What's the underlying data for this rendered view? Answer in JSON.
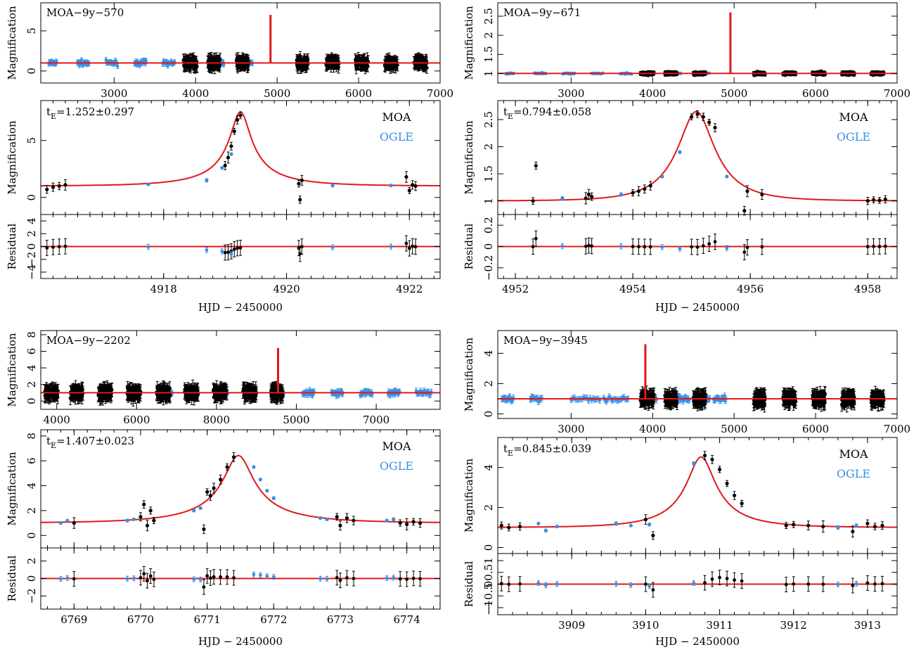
{
  "colors": {
    "moa": "#000000",
    "ogle": "#3b8ee6",
    "model": "#e01818"
  },
  "figure": {
    "events": [
      {
        "overview": {
          "label": "MOA−9y−570",
          "ylabel": "Magnification",
          "xticks": [
            "3000",
            "4000",
            "5000",
            "6000",
            "7000"
          ],
          "yticks": [
            "0",
            "5"
          ],
          "xlim": [
            2100,
            7000
          ],
          "ylim": [
            -1.5,
            8.5
          ]
        },
        "detail": {
          "te_label": "t",
          "te_sub": "E",
          "te_value": "=1.252±0.297",
          "ylabel": "Magnification",
          "yticks": [
            "0",
            "5"
          ],
          "xlim": [
            4916.0,
            4922.5
          ],
          "ylim": [
            -1.5,
            8.5
          ],
          "legend_moa": "MOA",
          "legend_ogle": "OGLE"
        },
        "residual": {
          "ylabel": "Residual",
          "yticks": [
            "4",
            "2",
            "0",
            "−2",
            "−4"
          ],
          "xticks": [
            "4918",
            "4920",
            "4922"
          ],
          "ylim": [
            -5,
            5
          ]
        },
        "xlabel": "HJD  −  2450000"
      },
      {
        "overview": {
          "label": "MOA−9y−671",
          "ylabel": "Magnification",
          "xticks": [
            "3000",
            "4000",
            "5000",
            "6000",
            "7000"
          ],
          "yticks": [
            "1",
            "1.5",
            "2",
            "2.5"
          ],
          "xlim": [
            2100,
            7000
          ],
          "ylim": [
            0.75,
            2.85
          ]
        },
        "detail": {
          "te_label": "t",
          "te_sub": "E",
          "te_value": "=0.794±0.058",
          "ylabel": "Magnification",
          "yticks": [
            "1",
            "1.5",
            "2",
            "2.5"
          ],
          "xlim": [
            4951.7,
            4958.5
          ],
          "ylim": [
            0.75,
            2.85
          ],
          "legend_moa": "MOA",
          "legend_ogle": "OGLE"
        },
        "residual": {
          "ylabel": "Residual",
          "yticks": [
            "0.2",
            "0",
            "−0.2"
          ],
          "xticks": [
            "4952",
            "4954",
            "4956",
            "4958"
          ],
          "ylim": [
            -0.3,
            0.3
          ]
        },
        "xlabel": "HJD  −  2450000"
      },
      {
        "overview": {
          "label": "MOA−9y−2202",
          "ylabel": "Magnification",
          "xticks": [
            "4000",
            "6000",
            "8000",
            "5000",
            "7000"
          ],
          "yticks": [
            "0",
            "2",
            "4",
            "6",
            "8"
          ],
          "xlim": [
            3800,
            8800
          ],
          "ylim": [
            -1.0,
            8.5
          ]
        },
        "detail": {
          "te_label": "t",
          "te_sub": "E",
          "te_value": "=1.407±0.023",
          "ylabel": "Magnification",
          "yticks": [
            "0",
            "2",
            "4",
            "6",
            "8"
          ],
          "xlim": [
            6768.5,
            6774.5
          ],
          "ylim": [
            -1.0,
            8.5
          ],
          "legend_moa": "MOA",
          "legend_ogle": "OGLE"
        },
        "residual": {
          "ylabel": "Residual",
          "yticks": [
            "2",
            "0",
            "−2"
          ],
          "xticks": [
            "6769",
            "6770",
            "6771",
            "6772",
            "6773",
            "6774"
          ],
          "ylim": [
            -3.5,
            3.5
          ]
        },
        "xlabel": "HJD  −  2450000"
      },
      {
        "overview": {
          "label": "MOA−9y−3945",
          "ylabel": "Magnification",
          "xticks": [
            "3000",
            "4000",
            "5000",
            "6000",
            "7000"
          ],
          "yticks": [
            "0",
            "2",
            "4"
          ],
          "xlim": [
            2100,
            7000
          ],
          "ylim": [
            -0.3,
            5.5
          ]
        },
        "detail": {
          "te_label": "t",
          "te_sub": "E",
          "te_value": "=0.845±0.039",
          "ylabel": "Magnification",
          "yticks": [
            "0",
            "2",
            "4"
          ],
          "xlim": [
            3908.0,
            3913.4
          ],
          "ylim": [
            -0.3,
            5.5
          ],
          "legend_moa": "MOA",
          "legend_ogle": "OGLE"
        },
        "residual": {
          "ylabel": "Residual",
          "yticks": [
            "1",
            "0.5",
            "0",
            "−0.5",
            "−1"
          ],
          "xticks": [
            "3909",
            "3910",
            "3911",
            "3912",
            "3913"
          ],
          "ylim": [
            -1.3,
            1.3
          ]
        },
        "xlabel": "HJD  −  2450000"
      }
    ]
  },
  "chart_data": [
    {
      "type": "scatter",
      "title": "MOA−9y−570",
      "xlabel": "HJD  −  2450000",
      "ylabel": "Magnification",
      "xlim": [
        4916.0,
        4922.5
      ],
      "ylim": [
        -1.5,
        8.5
      ],
      "model": {
        "t0": 4919.25,
        "u0": 0.134,
        "tE": 1.252
      },
      "series": [
        {
          "name": "MOA",
          "x": [
            4916.1,
            4916.2,
            4916.3,
            4916.4,
            4919.0,
            4919.05,
            4919.1,
            4919.15,
            4919.2,
            4919.25,
            4920.2,
            4920.22,
            4920.25,
            4921.95,
            4922.0,
            4922.05,
            4922.1
          ],
          "y": [
            0.7,
            0.9,
            1.0,
            1.1,
            2.8,
            3.5,
            4.5,
            5.8,
            6.8,
            7.2,
            1.2,
            -0.2,
            1.5,
            1.8,
            0.6,
            1.1,
            1.0
          ]
        },
        {
          "name": "OGLE",
          "x": [
            4918.7,
            4918.95,
            4919.1,
            4917.75,
            4920.75,
            4921.7
          ],
          "y": [
            1.5,
            2.6,
            3.8,
            1.15,
            1.05,
            1.05
          ]
        }
      ]
    },
    {
      "type": "scatter",
      "title": "MOA−9y−671",
      "xlabel": "HJD  −  2450000",
      "ylabel": "Magnification",
      "xlim": [
        4951.7,
        4958.5
      ],
      "ylim": [
        0.75,
        2.85
      ],
      "model": {
        "t0": 4955.08,
        "u0": 0.4,
        "tE": 0.794
      },
      "series": [
        {
          "name": "MOA",
          "x": [
            4952.3,
            4952.35,
            4953.2,
            4953.25,
            4953.3,
            4954.0,
            4954.1,
            4954.2,
            4954.3,
            4955.0,
            4955.1,
            4955.2,
            4955.3,
            4955.4,
            4955.9,
            4955.95,
            4956.2,
            4958.0,
            4958.1,
            4958.2,
            4958.3
          ],
          "y": [
            1.0,
            1.65,
            1.05,
            1.12,
            1.08,
            1.15,
            1.18,
            1.22,
            1.28,
            2.55,
            2.6,
            2.55,
            2.45,
            2.35,
            0.82,
            1.18,
            1.12,
            1.0,
            1.02,
            1.01,
            1.03
          ]
        },
        {
          "name": "OGLE",
          "x": [
            4952.8,
            4953.8,
            4954.5,
            4954.8,
            4955.6
          ],
          "y": [
            1.05,
            1.12,
            1.45,
            1.9,
            1.45
          ]
        }
      ]
    },
    {
      "type": "scatter",
      "title": "MOA−9y−2202",
      "xlabel": "HJD  −  2450000",
      "ylabel": "Magnification",
      "xlim": [
        6768.5,
        6774.5
      ],
      "ylim": [
        -1.0,
        8.5
      ],
      "model": {
        "t0": 6771.47,
        "u0": 0.157,
        "tE": 1.407
      },
      "series": [
        {
          "name": "MOA",
          "x": [
            6769.0,
            6770.0,
            6770.05,
            6770.1,
            6770.15,
            6770.2,
            6770.95,
            6771.0,
            6771.05,
            6771.1,
            6771.2,
            6771.3,
            6771.4,
            6772.95,
            6773.0,
            6773.1,
            6773.2,
            6773.9,
            6774.0,
            6774.1,
            6774.2
          ],
          "y": [
            1.0,
            1.5,
            2.5,
            0.8,
            2.0,
            1.2,
            0.5,
            3.5,
            3.2,
            3.8,
            4.5,
            5.5,
            6.3,
            1.5,
            0.8,
            1.4,
            1.2,
            1.0,
            0.9,
            1.1,
            1.0
          ]
        },
        {
          "name": "OGLE",
          "x": [
            6768.8,
            6768.9,
            6769.8,
            6769.9,
            6770.8,
            6770.9,
            6771.7,
            6771.8,
            6771.9,
            6772.0,
            6772.7,
            6772.8,
            6773.7,
            6773.8
          ],
          "y": [
            1.0,
            1.2,
            1.2,
            1.3,
            2.0,
            2.2,
            5.5,
            4.5,
            3.6,
            3.0,
            1.4,
            1.3,
            1.2,
            1.3
          ]
        }
      ]
    },
    {
      "type": "scatter",
      "title": "MOA−9y−3945",
      "xlabel": "HJD  −  2450000",
      "ylabel": "Magnification",
      "xlim": [
        3908.0,
        3913.4
      ],
      "ylim": [
        -0.3,
        5.5
      ],
      "model": {
        "t0": 3910.75,
        "u0": 0.225,
        "tE": 0.845
      },
      "series": [
        {
          "name": "MOA",
          "x": [
            3908.05,
            3908.15,
            3908.3,
            3910.0,
            3910.1,
            3910.8,
            3910.9,
            3911.0,
            3911.1,
            3911.2,
            3911.3,
            3911.9,
            3912.0,
            3912.2,
            3912.4,
            3912.8,
            3913.0,
            3913.1,
            3913.2
          ],
          "y": [
            1.1,
            1.0,
            1.05,
            1.4,
            0.6,
            4.6,
            4.4,
            3.9,
            3.2,
            2.6,
            2.2,
            1.1,
            1.15,
            1.1,
            1.05,
            0.8,
            1.2,
            1.05,
            1.1
          ]
        },
        {
          "name": "OGLE",
          "x": [
            3908.55,
            3908.65,
            3908.8,
            3909.6,
            3909.8,
            3910.05,
            3910.65,
            3912.6,
            3912.85
          ],
          "y": [
            1.2,
            0.85,
            1.05,
            1.2,
            1.1,
            1.15,
            4.2,
            1.0,
            1.1
          ]
        }
      ]
    }
  ]
}
